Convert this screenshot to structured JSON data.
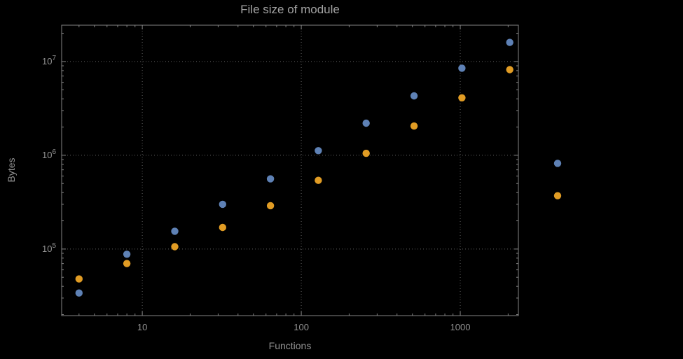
{
  "chart_data": {
    "type": "scatter",
    "title": "File size of module",
    "xlabel": "Functions",
    "ylabel": "Bytes",
    "x_scale": "log",
    "y_scale": "log",
    "xlim": [
      3.11,
      2320
    ],
    "ylim": [
      19500,
      24400000
    ],
    "grid": "dotted",
    "legend": "none",
    "x_ticks": [
      {
        "value": 10,
        "label": "10"
      },
      {
        "value": 100,
        "label": "100"
      },
      {
        "value": 1000,
        "label": "1000"
      }
    ],
    "y_ticks": [
      {
        "value": 100000,
        "base": "10",
        "exp": "5"
      },
      {
        "value": 1000000,
        "base": "10",
        "exp": "6"
      },
      {
        "value": 10000000,
        "base": "10",
        "exp": "7"
      }
    ],
    "series": [
      {
        "name": "series-blue",
        "color": "#5e81b5",
        "x": [
          4,
          8,
          16,
          32,
          64,
          128,
          256,
          512,
          1024,
          2048,
          4096
        ],
        "y": [
          34000,
          88000,
          155000,
          300000,
          560000,
          1120000,
          2200000,
          4300000,
          8500000,
          16000000,
          820000
        ]
      },
      {
        "name": "series-orange",
        "color": "#e19c24",
        "x": [
          4,
          8,
          16,
          32,
          64,
          128,
          256,
          512,
          1024,
          2048,
          4096
        ],
        "y": [
          48000,
          70000,
          106000,
          170000,
          290000,
          540000,
          1050000,
          2050000,
          4100000,
          8200000,
          370000
        ]
      }
    ],
    "colors": {
      "background": "#000000",
      "frame": "#848484",
      "grid": "#5f5f5f",
      "text": "#929292"
    }
  }
}
